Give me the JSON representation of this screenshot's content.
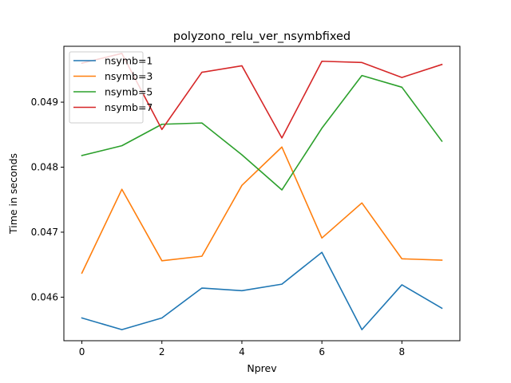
{
  "chart_data": {
    "type": "line",
    "title": "polyzono_relu_ver_nsymbfixed",
    "xlabel": "Nprev",
    "ylabel": "Time in seconds",
    "x": [
      0,
      1,
      2,
      3,
      4,
      5,
      6,
      7,
      8,
      9
    ],
    "xlim": [
      -0.45,
      9.45
    ],
    "ylim": [
      0.04533,
      0.04986
    ],
    "x_ticks": [
      0,
      2,
      4,
      6,
      8
    ],
    "y_ticks": [
      0.046,
      0.047,
      0.048,
      0.049
    ],
    "x_tick_labels": [
      "0",
      "2",
      "4",
      "6",
      "8"
    ],
    "y_tick_labels": [
      "0.046",
      "0.047",
      "0.048",
      "0.049"
    ],
    "grid": false,
    "legend_position": "upper-left",
    "series": [
      {
        "name": "nsymb=1",
        "color": "#1f77b4",
        "values": [
          0.04568,
          0.0455,
          0.04568,
          0.04614,
          0.0461,
          0.0462,
          0.04669,
          0.0455,
          0.04619,
          0.04583
        ]
      },
      {
        "name": "nsymb=3",
        "color": "#ff7f0e",
        "values": [
          0.04637,
          0.04766,
          0.04656,
          0.04663,
          0.04772,
          0.04831,
          0.04691,
          0.04745,
          0.04659,
          0.04657
        ]
      },
      {
        "name": "nsymb=5",
        "color": "#2ca02c",
        "values": [
          0.04818,
          0.04833,
          0.04866,
          0.04868,
          0.04819,
          0.04765,
          0.0486,
          0.04941,
          0.04923,
          0.0484
        ]
      },
      {
        "name": "nsymb=7",
        "color": "#d62728",
        "values": [
          0.0496,
          0.04975,
          0.04858,
          0.04946,
          0.04956,
          0.04845,
          0.04963,
          0.04961,
          0.04938,
          0.04958
        ]
      }
    ]
  }
}
